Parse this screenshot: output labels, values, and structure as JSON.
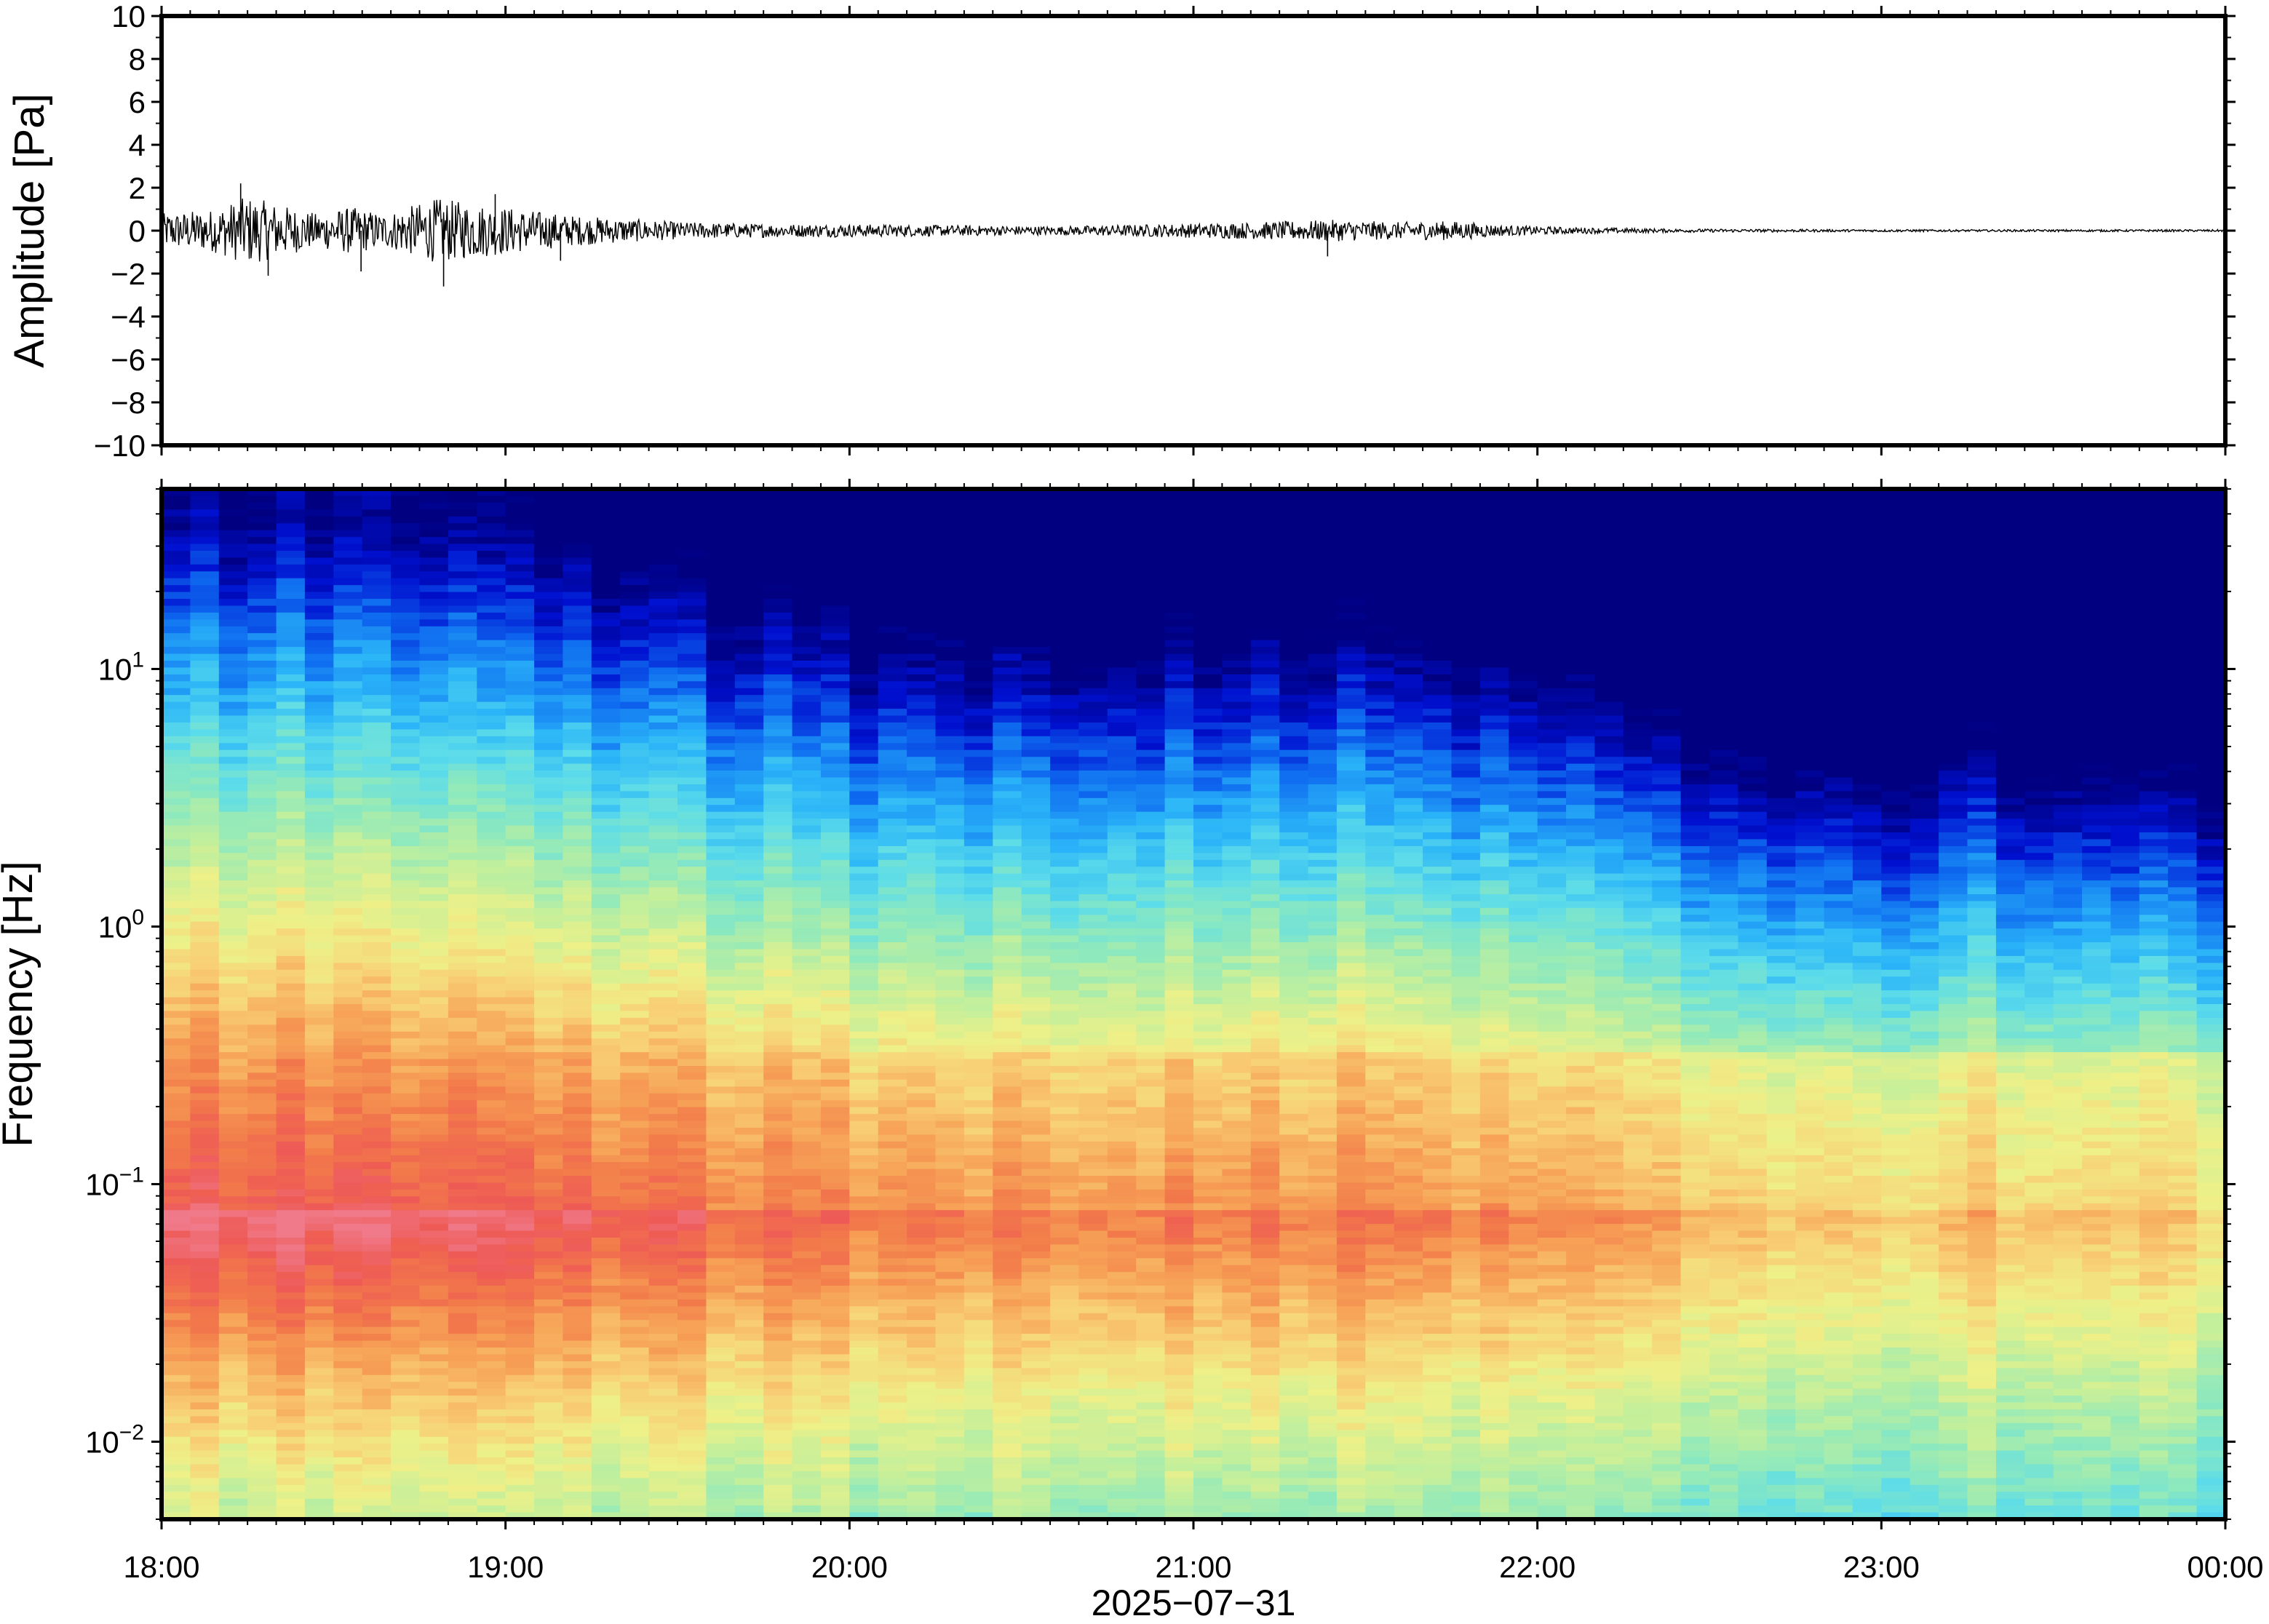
{
  "chart_data": [
    {
      "type": "line",
      "panel": "waveform",
      "ylabel": "Amplitude [Pa]",
      "ylim": [
        -10,
        10
      ],
      "yticks": [
        10,
        8,
        6,
        4,
        2,
        0,
        -2,
        -4,
        -6,
        -8,
        -10
      ],
      "ytick_labels": [
        "10",
        "8",
        "6",
        "4",
        "2",
        "0",
        "−2",
        "−4",
        "−6",
        "−8",
        "−10"
      ],
      "xlim_hours": [
        18,
        24
      ],
      "grid": false,
      "series_color": "#000000",
      "envelope": {
        "hours": [
          18.0,
          18.15,
          18.25,
          18.45,
          18.55,
          18.65,
          18.8,
          18.95,
          19.2,
          19.5,
          19.8,
          20.0,
          20.3,
          20.6,
          20.9,
          21.2,
          21.4,
          21.6,
          21.75,
          21.9,
          22.1,
          22.4,
          22.8,
          23.2,
          23.6,
          24.0
        ],
        "peak_pa": [
          0.8,
          1.0,
          1.6,
          0.8,
          1.1,
          0.8,
          1.5,
          1.2,
          0.7,
          0.4,
          0.3,
          0.3,
          0.25,
          0.2,
          0.3,
          0.4,
          0.5,
          0.4,
          0.45,
          0.25,
          0.15,
          0.08,
          0.06,
          0.05,
          0.05,
          0.05
        ]
      },
      "spikes": [
        {
          "hour": 18.23,
          "value": 2.2
        },
        {
          "hour": 18.31,
          "value": -2.1
        },
        {
          "hour": 18.58,
          "value": -1.9
        },
        {
          "hour": 18.82,
          "value": -2.6
        },
        {
          "hour": 18.97,
          "value": 1.7
        },
        {
          "hour": 19.16,
          "value": -1.4
        },
        {
          "hour": 21.39,
          "value": -1.2
        }
      ]
    },
    {
      "type": "heatmap",
      "panel": "spectrogram",
      "ylabel": "Frequency [Hz]",
      "yscale": "log",
      "ylim": [
        0.005,
        50
      ],
      "yticks": [
        0.01,
        0.1,
        1,
        10
      ],
      "ytick_labels": [
        {
          "base": "10",
          "exp": "−2"
        },
        {
          "base": "10",
          "exp": "−1"
        },
        {
          "base": "10",
          "exp": "0"
        },
        {
          "base": "10",
          "exp": "1"
        }
      ],
      "xlim_hours": [
        18,
        24
      ],
      "xticks": [
        "18:00",
        "19:00",
        "20:00",
        "21:00",
        "22:00",
        "23:00",
        "00:00"
      ],
      "xlabel": "2025−07−31",
      "colormap": "jet",
      "colormap_stops": [
        "#000080",
        "#0010d0",
        "#0f6cf0",
        "#2ab4f8",
        "#5cdcea",
        "#8ee9bd",
        "#c2ef9c",
        "#eef088",
        "#f8d076",
        "#f7a558",
        "#f27a4a",
        "#ee5a55",
        "#f07a8a"
      ],
      "intensity_profile": {
        "hours": [
          18.0,
          18.5,
          19.0,
          19.5,
          20.0,
          20.5,
          21.0,
          21.3,
          21.5,
          21.8,
          22.0,
          22.2,
          22.5,
          23.0,
          23.3,
          23.5,
          24.0
        ],
        "level": [
          1.0,
          1.0,
          0.95,
          0.82,
          0.7,
          0.66,
          0.66,
          0.72,
          0.7,
          0.64,
          0.6,
          0.55,
          0.4,
          0.36,
          0.4,
          0.32,
          0.3
        ]
      }
    }
  ]
}
